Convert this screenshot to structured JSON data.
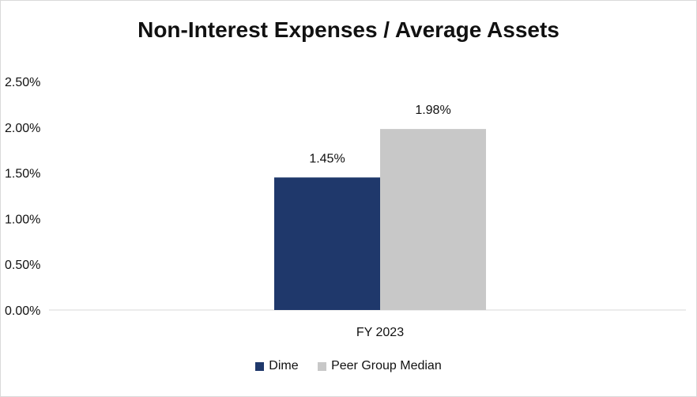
{
  "chart_data": {
    "type": "bar",
    "title": "Non-Interest Expenses / Average Assets",
    "categories": [
      "FY 2023"
    ],
    "series": [
      {
        "name": "Dime",
        "values": [
          1.45
        ],
        "labels": [
          "1.45%"
        ],
        "color": "#1f386b"
      },
      {
        "name": "Peer Group Median",
        "values": [
          1.98
        ],
        "labels": [
          "1.98%"
        ],
        "color": "#c8c8c8"
      }
    ],
    "ylim": [
      0,
      2.5
    ],
    "yticks": [
      {
        "value": 0,
        "label": "0.00%"
      },
      {
        "value": 0.5,
        "label": "0.50%"
      },
      {
        "value": 1.0,
        "label": "1.00%"
      },
      {
        "value": 1.5,
        "label": "1.50%"
      },
      {
        "value": 2.0,
        "label": "2.00%"
      },
      {
        "value": 2.5,
        "label": "2.50%"
      }
    ],
    "xlabel": "",
    "ylabel": "",
    "grid": false,
    "legend_position": "bottom"
  }
}
